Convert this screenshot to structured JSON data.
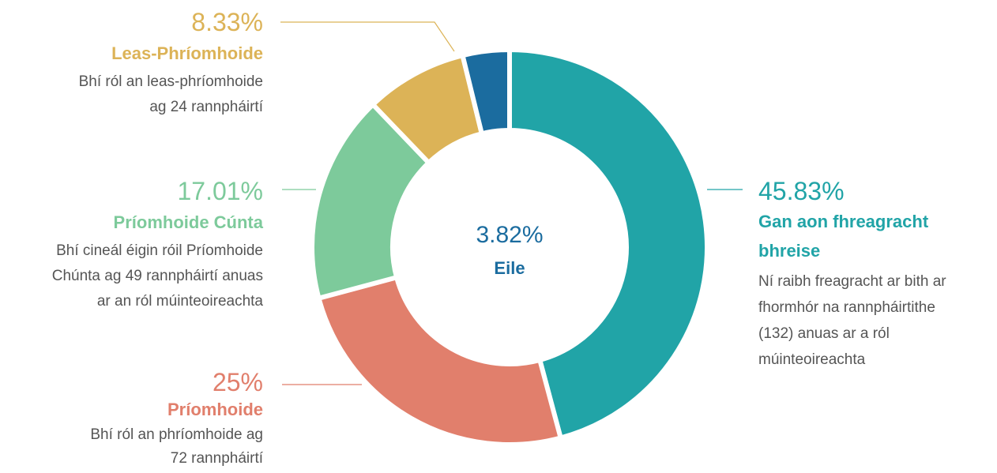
{
  "chart_data": {
    "type": "donut",
    "slices": [
      {
        "name": "Gan aon fhreagracht bhreise",
        "value": 45.83,
        "value_label": "45.83%",
        "color": "#21a4a7",
        "description": [
          "Ní raibh freagracht ar bith ar",
          "fhormhór na rannpháirtithe",
          "(132) anuas ar a ról",
          "múinteoireachta"
        ]
      },
      {
        "name": "Príomhoide",
        "value": 25,
        "value_label": "25%",
        "color": "#e17f6c",
        "description": [
          "Bhí ról an phríomhoide ag",
          "72 rannpháirtí"
        ]
      },
      {
        "name": "Príomhoide Cúnta",
        "value": 17.01,
        "value_label": "17.01%",
        "color": "#7dca9b",
        "description": [
          "Bhí cineál éigin róil Príomhoide",
          "Chúnta ag 49 rannpháirtí anuas",
          "ar an ról múinteoireachta"
        ]
      },
      {
        "name": "Leas-Phríomhoide",
        "value": 8.33,
        "value_label": "8.33%",
        "color": "#dcb357",
        "description": [
          "Bhí ról an leas-phríomhoide",
          "ag 24 rannpháirtí"
        ]
      },
      {
        "name": "Eile",
        "value": 3.82,
        "value_label": "3.82%",
        "color": "#1b6c9f"
      }
    ]
  }
}
